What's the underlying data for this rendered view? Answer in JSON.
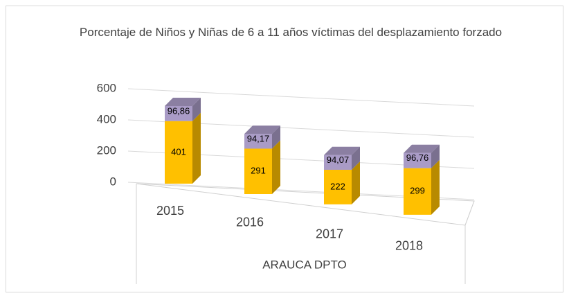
{
  "chart_data": {
    "type": "bar3d_stacked",
    "title": "Porcentaje de Niños y Niñas de 6 a 11 años víctimas del desplazamiento forzado",
    "x_label": "ARAUCA DPTO",
    "categories": [
      "2015",
      "2016",
      "2017",
      "2018"
    ],
    "series": [
      {
        "color": "#FFC000",
        "values": [
          401,
          291,
          222,
          299
        ]
      },
      {
        "color": "#A99BC6",
        "values": [
          96.86,
          94.17,
          94.07,
          96.76
        ],
        "value_labels": [
          "96,86",
          "94,17",
          "94,07",
          "96,76"
        ]
      }
    ],
    "ylim": [
      0,
      600
    ],
    "yticks": [
      0,
      200,
      400,
      600
    ],
    "grid": true
  }
}
